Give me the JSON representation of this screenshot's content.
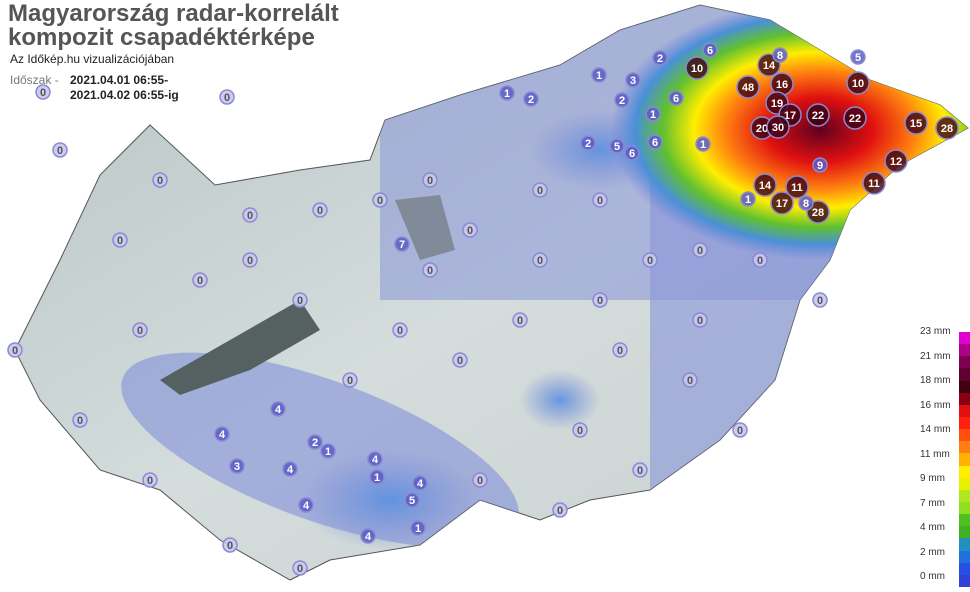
{
  "title_line1": "Magyarország radar-korrelált",
  "title_line2": "kompozit csapadéktérképe",
  "subtitle": "Az Időkép.hu vizualizációjában",
  "period_label": "Időszak -",
  "period_from": "2021.04.01 06:55-",
  "period_to": "2021.04.02 06:55-ig",
  "legend": {
    "labels": [
      "23 mm",
      "21 mm",
      "18 mm",
      "16 mm",
      "14 mm",
      "11 mm",
      "9 mm",
      "7 mm",
      "4 mm",
      "2 mm",
      "0 mm"
    ],
    "colors": [
      "#e000d0",
      "#b0008a",
      "#800050",
      "#600030",
      "#400010",
      "#8a0010",
      "#e01010",
      "#ff2010",
      "#ff5010",
      "#ff8010",
      "#ffb000",
      "#ffee00",
      "#e8f000",
      "#b0e820",
      "#90e020",
      "#50c020",
      "#40b020",
      "#2090c0",
      "#2070e0",
      "#2850e0",
      "#3040d8"
    ]
  },
  "stations": [
    "48",
    "16",
    "19",
    "22",
    "22",
    "17",
    "20",
    "30",
    "15",
    "28",
    "28",
    "12",
    "11",
    "14",
    "11",
    "17",
    "8",
    "9",
    "10",
    "14",
    "8",
    "6",
    "5",
    "10",
    "6",
    "2",
    "1",
    "3",
    "2",
    "1",
    "2",
    "5",
    "6",
    "6",
    "1",
    "2",
    "1",
    "4",
    "4",
    "3",
    "4",
    "2",
    "1",
    "4",
    "4",
    "1",
    "5",
    "1",
    "4",
    "4",
    "7",
    "1",
    "0",
    "0",
    "0",
    "0",
    "0",
    "0",
    "0",
    "0",
    "0",
    "0",
    "0",
    "0",
    "0",
    "0",
    "0",
    "0",
    "0",
    "0",
    "0",
    "0",
    "0",
    "0",
    "0",
    "0",
    "0",
    "0",
    "0",
    "0",
    "0",
    "0",
    "0",
    "0",
    "0",
    "0",
    "0",
    "0",
    "0",
    "0",
    "0",
    "0"
  ]
}
